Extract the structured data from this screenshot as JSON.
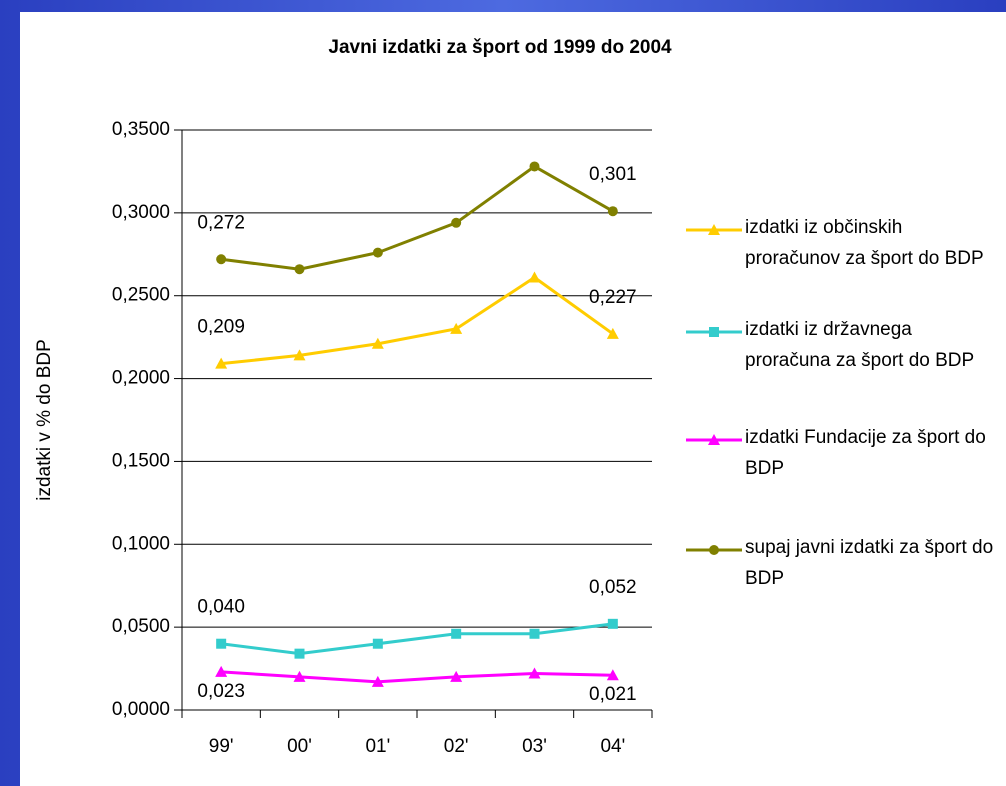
{
  "chart_data": {
    "type": "line",
    "title": "Javni izdatki za šport od 1999 do 2004",
    "y_label": "izdatki v % do BDP",
    "categories": [
      "99'",
      "00'",
      "01'",
      "02'",
      "03'",
      "04'"
    ],
    "ylim": [
      0,
      0.35
    ],
    "yticks": [
      {
        "value": 0,
        "label": "0,0000"
      },
      {
        "value": 0.05,
        "label": "0,0500"
      },
      {
        "value": 0.1,
        "label": "0,1000"
      },
      {
        "value": 0.15,
        "label": "0,1500"
      },
      {
        "value": 0.2,
        "label": "0,2000"
      },
      {
        "value": 0.25,
        "label": "0,2500"
      },
      {
        "value": 0.3,
        "label": "0,3000"
      },
      {
        "value": 0.35,
        "label": "0,3500"
      }
    ],
    "grid": true,
    "series": [
      {
        "name": "izdatki iz občinskih proračunov za šport do BDP",
        "color": "#ffcc00",
        "marker": "triangle",
        "values": [
          0.209,
          0.214,
          0.221,
          0.23,
          0.261,
          0.227
        ],
        "value_labels": [
          "0,209",
          null,
          null,
          null,
          null,
          "0,227"
        ]
      },
      {
        "name": "izdatki iz državnega proračuna za šport do BDP",
        "color": "#33cccc",
        "marker": "square",
        "values": [
          0.04,
          0.034,
          0.04,
          0.046,
          0.046,
          0.052
        ],
        "value_labels": [
          "0,040",
          null,
          null,
          null,
          null,
          "0,052"
        ]
      },
      {
        "name": "izdatki Fundacije za šport do BDP",
        "color": "#ff00ff",
        "marker": "triangle",
        "values": [
          0.023,
          0.02,
          0.017,
          0.02,
          0.022,
          0.021
        ],
        "value_labels": [
          "0,023",
          null,
          null,
          null,
          null,
          "0,021"
        ]
      },
      {
        "name": "supaj javni izdatki za šport do BDP",
        "color": "#808000",
        "marker": "circle",
        "values": [
          0.272,
          0.266,
          0.276,
          0.294,
          0.328,
          0.301
        ],
        "value_labels": [
          "0,272",
          null,
          null,
          null,
          null,
          "0,301"
        ]
      }
    ]
  }
}
